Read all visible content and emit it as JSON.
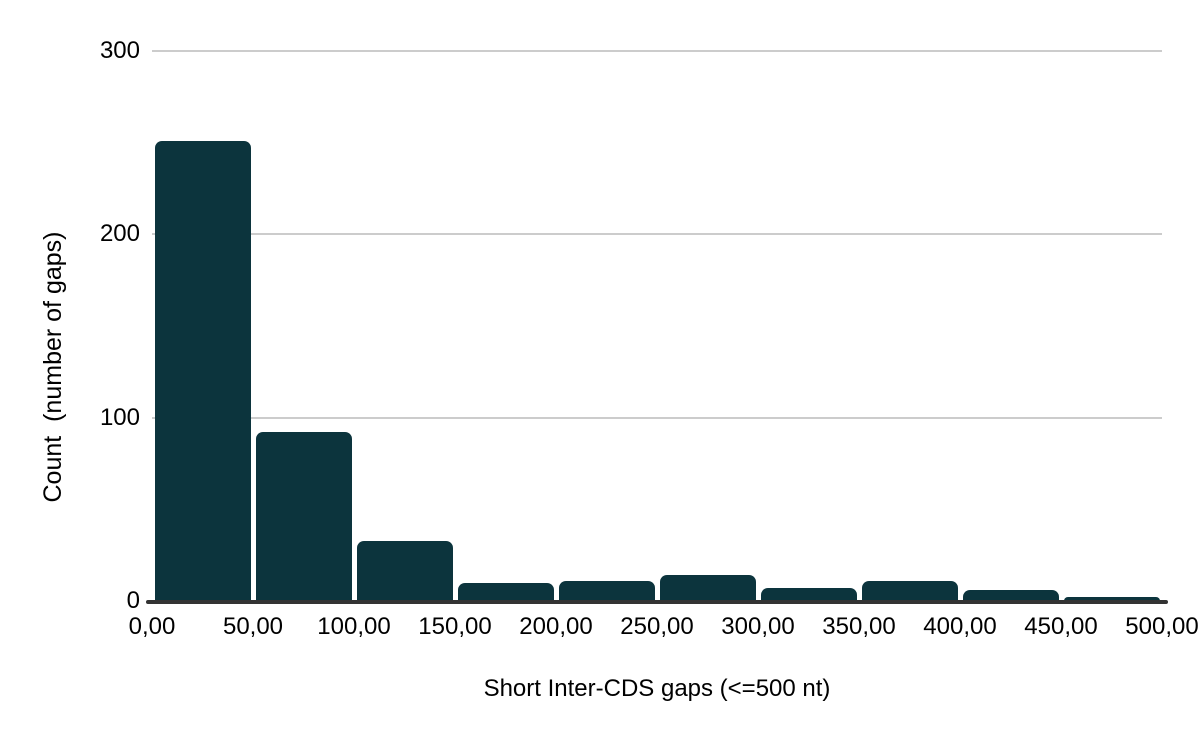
{
  "chart_data": {
    "type": "bar",
    "subtype": "histogram",
    "title": "",
    "xlabel": "Short Inter-CDS gaps (<=500 nt)",
    "ylabel": "Count  (number of gaps)",
    "bins": [
      "0-50",
      "50-100",
      "100-150",
      "150-200",
      "200-250",
      "250-300",
      "300-350",
      "350-400",
      "400-450",
      "450-500"
    ],
    "values": [
      251,
      92,
      33,
      10,
      11,
      14,
      7,
      11,
      6,
      2
    ],
    "x_tick_labels": [
      "0,00",
      "50,00",
      "100,00",
      "150,00",
      "200,00",
      "250,00",
      "300,00",
      "350,00",
      "400,00",
      "450,00",
      "500,00"
    ],
    "y_ticks": [
      0,
      100,
      200,
      300
    ],
    "ylim": [
      0,
      300
    ],
    "xlim": [
      0,
      500
    ],
    "grid": "horizontal",
    "legend": "none",
    "bar_color": "#0c343d"
  },
  "colors": {
    "background": "#ffffff",
    "bar": "#0c343d",
    "gridline": "#cccccc",
    "axis_line": "#333333",
    "text": "#000000"
  }
}
